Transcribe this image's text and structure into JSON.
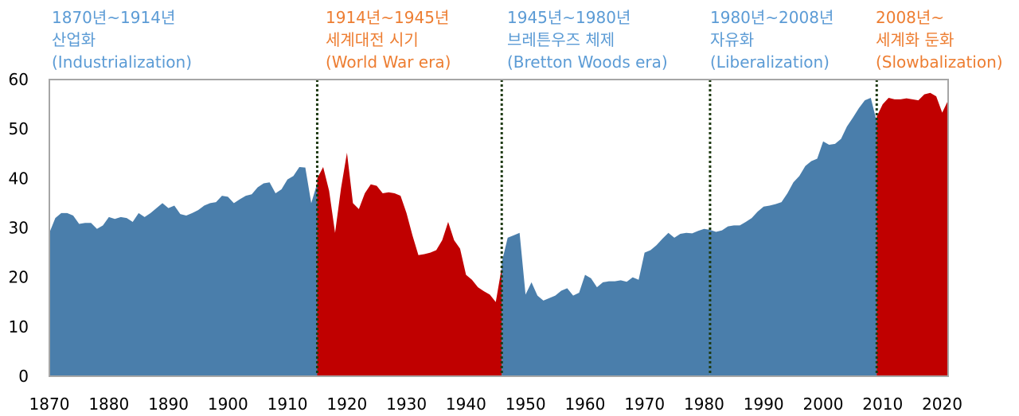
{
  "colors": {
    "blue": "#4a7eab",
    "red": "#c00000",
    "blue_text": "#5b9bd5",
    "orange_text": "#ed7d31",
    "divider": "#1e3a12",
    "frame": "#a6a6a6"
  },
  "eras": [
    {
      "years": "1870년~1914년",
      "name_ko": "산업화",
      "name_en": "(Industrialization)",
      "color": "#5b9bd5"
    },
    {
      "years": "1914년~1945년",
      "name_ko": "세계대전 시기",
      "name_en": "(World War era)",
      "color": "#ed7d31"
    },
    {
      "years": "1945년~1980년",
      "name_ko": "브레튼우즈 체제",
      "name_en": "(Bretton Woods era)",
      "color": "#5b9bd5"
    },
    {
      "years": "1980년~2008년",
      "name_ko": "자유화",
      "name_en": "(Liberalization)",
      "color": "#5b9bd5"
    },
    {
      "years": "2008년~",
      "name_ko": "세계화 둔화",
      "name_en": "(Slowbalization)",
      "color": "#ed7d31"
    }
  ],
  "chart_data": {
    "type": "area",
    "xlim": [
      1870,
      2021
    ],
    "ylim": [
      0,
      60
    ],
    "x_ticks": [
      1870,
      1880,
      1890,
      1900,
      1910,
      1920,
      1930,
      1940,
      1950,
      1960,
      1970,
      1980,
      1990,
      2000,
      2010,
      2020
    ],
    "y_ticks": [
      0,
      10,
      20,
      30,
      40,
      50,
      60
    ],
    "dividers": [
      1915,
      1946,
      1981,
      2009
    ],
    "grid": false,
    "series": [
      {
        "color": "#4a7eab",
        "x": [
          1870,
          1871,
          1872,
          1873,
          1874,
          1875,
          1876,
          1877,
          1878,
          1879,
          1880,
          1881,
          1882,
          1883,
          1884,
          1885,
          1886,
          1887,
          1888,
          1889,
          1890,
          1891,
          1892,
          1893,
          1894,
          1895,
          1896,
          1897,
          1898,
          1899,
          1900,
          1901,
          1902,
          1903,
          1904,
          1905,
          1906,
          1907,
          1908,
          1909,
          1910,
          1911,
          1912,
          1913,
          1914,
          1915
        ],
        "y": [
          29,
          32,
          33,
          33,
          32.5,
          30.8,
          31,
          31,
          29.8,
          30.5,
          32.2,
          31.8,
          32.2,
          32,
          31.2,
          33,
          32.2,
          33,
          34,
          35,
          34,
          34.5,
          32.8,
          32.5,
          33,
          33.6,
          34.5,
          35,
          35.2,
          36.5,
          36.3,
          35,
          35.8,
          36.5,
          36.8,
          38.2,
          39,
          39.2,
          37,
          37.8,
          39.8,
          40.5,
          42.3,
          42.2,
          35,
          39
        ]
      },
      {
        "color": "#c00000",
        "x": [
          1915,
          1916,
          1917,
          1918,
          1919,
          1920,
          1921,
          1922,
          1923,
          1924,
          1925,
          1926,
          1927,
          1928,
          1929,
          1930,
          1931,
          1932,
          1933,
          1934,
          1935,
          1936,
          1937,
          1938,
          1939,
          1940,
          1941,
          1942,
          1943,
          1944,
          1945,
          1946
        ],
        "y": [
          40,
          42.3,
          37.5,
          29,
          38,
          45.2,
          35,
          33.8,
          37,
          38.8,
          38.5,
          37,
          37.2,
          37,
          36.5,
          33,
          28.5,
          24.5,
          24.7,
          25,
          25.5,
          27.5,
          31.2,
          27.5,
          25.8,
          20.5,
          19.5,
          18,
          17.2,
          16.5,
          15,
          22
        ]
      },
      {
        "color": "#4a7eab",
        "x": [
          1946,
          1947,
          1948,
          1949,
          1950,
          1951,
          1952,
          1953,
          1954,
          1955,
          1956,
          1957,
          1958,
          1959,
          1960,
          1961,
          1962,
          1963,
          1964,
          1965,
          1966,
          1967,
          1968,
          1969,
          1970,
          1971,
          1972,
          1973,
          1974,
          1975,
          1976,
          1977,
          1978,
          1979,
          1980,
          1981
        ],
        "y": [
          23,
          28,
          28.5,
          29,
          16.5,
          19,
          16.3,
          15.3,
          15.8,
          16.3,
          17.3,
          17.8,
          16.3,
          16.9,
          20.5,
          19.8,
          18,
          19,
          19.2,
          19.2,
          19.4,
          19.1,
          20,
          19.5,
          25,
          25.5,
          26.5,
          27.8,
          29,
          28,
          28.8,
          29,
          28.9,
          29.4,
          29.8,
          29.6
        ]
      },
      {
        "color": "#4a7eab",
        "x": [
          1981,
          1982,
          1983,
          1984,
          1985,
          1986,
          1987,
          1988,
          1989,
          1990,
          1991,
          1992,
          1993,
          1994,
          1995,
          1996,
          1997,
          1998,
          1999,
          2000,
          2001,
          2002,
          2003,
          2004,
          2005,
          2006,
          2007,
          2008,
          2009
        ],
        "y": [
          29.6,
          29.2,
          29.5,
          30.3,
          30.5,
          30.5,
          31.2,
          32,
          33.3,
          34.3,
          34.5,
          34.8,
          35.2,
          37,
          39.2,
          40.5,
          42.5,
          43.5,
          44,
          47.5,
          46.8,
          47,
          48,
          50.5,
          52.3,
          54.2,
          55.8,
          56.3,
          51.5
        ]
      },
      {
        "color": "#c00000",
        "x": [
          2009,
          2010,
          2011,
          2012,
          2013,
          2014,
          2015,
          2016,
          2017,
          2018,
          2019,
          2020,
          2021
        ],
        "y": [
          52.5,
          55,
          56.3,
          56,
          56,
          56.2,
          56,
          55.8,
          57,
          57.3,
          56.6,
          53.3,
          55.8
        ]
      }
    ]
  }
}
